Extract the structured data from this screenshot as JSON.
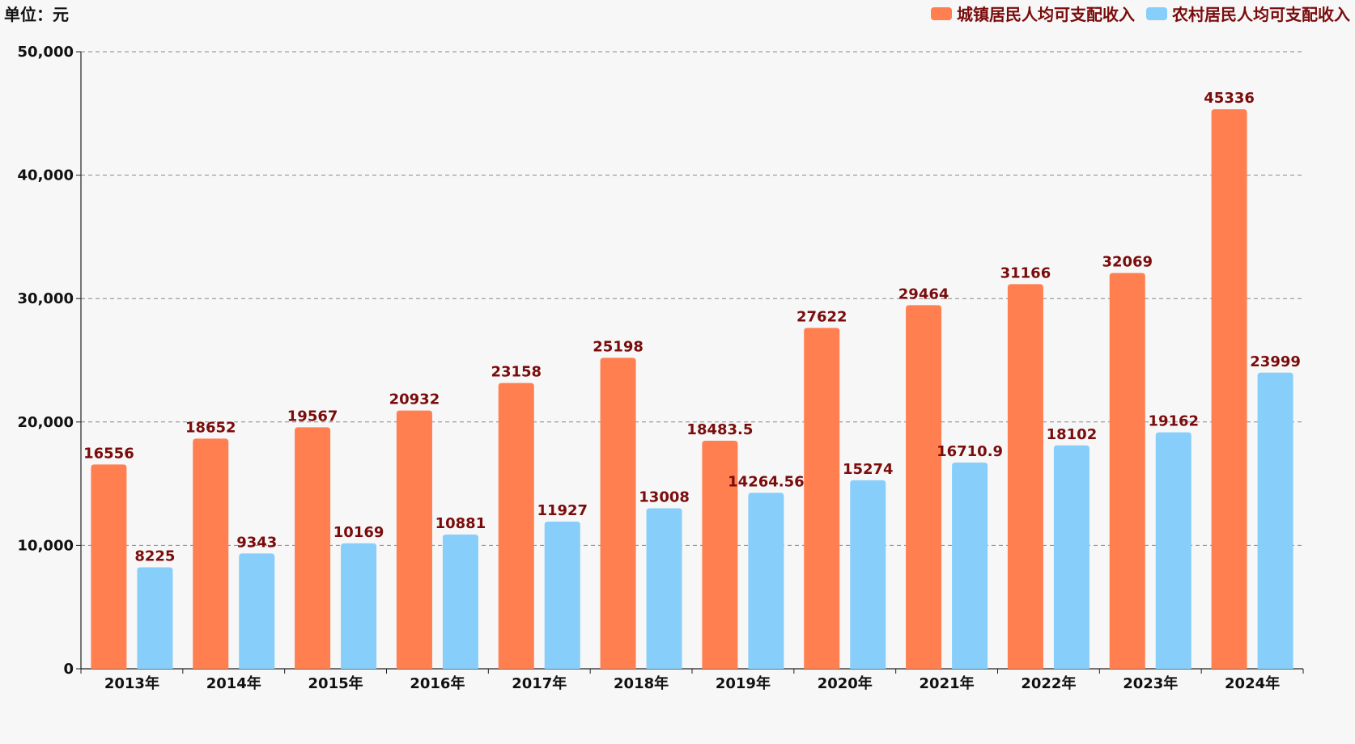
{
  "chart_data": {
    "type": "bar",
    "unit_label": "单位：元",
    "categories": [
      "2013年",
      "2014年",
      "2015年",
      "2016年",
      "2017年",
      "2018年",
      "2019年",
      "2020年",
      "2021年",
      "2022年",
      "2023年",
      "2024年"
    ],
    "series": [
      {
        "name": "城镇居民人均可支配收入",
        "color": "#ff7f50",
        "values": [
          16556,
          18652,
          19567,
          20932,
          23158,
          25198,
          18483.5,
          27622,
          29464,
          31166,
          32069,
          45336
        ]
      },
      {
        "name": "农村居民人均可支配收入",
        "color": "#87cefa",
        "values": [
          8225,
          9343,
          10169,
          10881,
          11927,
          13008,
          14264.56,
          15274,
          16710.9,
          18102,
          19162,
          23999
        ]
      }
    ],
    "ylim": [
      0,
      50000
    ],
    "yticks": [
      0,
      10000,
      20000,
      30000,
      40000,
      50000
    ],
    "ytick_labels": [
      "0",
      "10,000",
      "20,000",
      "30,000",
      "40,000",
      "50,000"
    ],
    "grid": true,
    "legend_position": "top-right",
    "label_color": "#7a0c0c"
  }
}
